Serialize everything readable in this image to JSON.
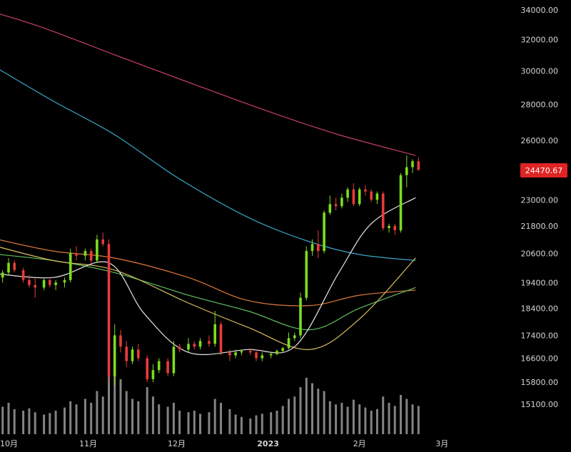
{
  "chart_data": {
    "type": "candlestick",
    "y_axis": {
      "ticks": [
        "34000.00",
        "32000.00",
        "30000.00",
        "28000.00",
        "26000.00",
        "23000.00",
        "21800.00",
        "20600.00",
        "19400.00",
        "18400.00",
        "17400.00",
        "16600.00",
        "15800.00",
        "15100.00"
      ],
      "scale": "log"
    },
    "x_axis": {
      "ticks": [
        {
          "label": "10月",
          "bold": false
        },
        {
          "label": "11月",
          "bold": false
        },
        {
          "label": "12月",
          "bold": false
        },
        {
          "label": "2023",
          "bold": true
        },
        {
          "label": "2月",
          "bold": false
        },
        {
          "label": "3月",
          "bold": false
        }
      ]
    },
    "last_price": "24470.67",
    "colors": {
      "background": "#000000",
      "up": "#7ddc1f",
      "down": "#e83b3b",
      "price_label_bg": "#e02424",
      "volume": "#9a9a9a",
      "ma_short": "#e6e6e6",
      "ma_mid1": "#d8c060",
      "ma_mid2": "#5fbf5f",
      "ma_mid3": "#e07a3a",
      "ma_long1": "#3aa6c8",
      "ma_long2": "#c8406a"
    },
    "moving_averages": [
      {
        "color_key": "ma_long2",
        "points": [
          [
            "2022-09-20",
            34450
          ],
          [
            "2022-10-15",
            32900
          ],
          [
            "2022-11-10",
            31000
          ],
          [
            "2022-12-05",
            29300
          ],
          [
            "2023-01-01",
            27600
          ],
          [
            "2023-01-25",
            26300
          ],
          [
            "2023-02-20",
            25200
          ]
        ]
      },
      {
        "color_key": "ma_long1",
        "points": [
          [
            "2022-09-28",
            30500
          ],
          [
            "2022-10-20",
            28200
          ],
          [
            "2022-11-10",
            26300
          ],
          [
            "2022-12-01",
            24100
          ],
          [
            "2022-12-25",
            22200
          ],
          [
            "2023-01-15",
            21100
          ],
          [
            "2023-02-01",
            20550
          ],
          [
            "2023-02-20",
            20300
          ]
        ]
      },
      {
        "color_key": "ma_mid3",
        "points": [
          [
            "2022-09-28",
            21300
          ],
          [
            "2022-10-20",
            20700
          ],
          [
            "2022-11-10",
            20400
          ],
          [
            "2022-12-05",
            19600
          ],
          [
            "2022-12-25",
            18700
          ],
          [
            "2023-01-15",
            18500
          ],
          [
            "2023-02-01",
            18900
          ],
          [
            "2023-02-20",
            19100
          ]
        ]
      },
      {
        "color_key": "ma_mid2",
        "points": [
          [
            "2022-09-28",
            20600
          ],
          [
            "2022-10-20",
            20300
          ],
          [
            "2022-11-10",
            19800
          ],
          [
            "2022-12-05",
            18900
          ],
          [
            "2022-12-25",
            18300
          ],
          [
            "2023-01-15",
            17600
          ],
          [
            "2023-02-01",
            18400
          ],
          [
            "2023-02-20",
            19200
          ]
        ]
      },
      {
        "color_key": "ma_mid1",
        "points": [
          [
            "2022-09-28",
            21000
          ],
          [
            "2022-10-20",
            20300
          ],
          [
            "2022-11-10",
            19900
          ],
          [
            "2022-12-05",
            18600
          ],
          [
            "2022-12-25",
            17700
          ],
          [
            "2023-01-15",
            16900
          ],
          [
            "2023-02-01",
            18000
          ],
          [
            "2023-02-20",
            20400
          ]
        ]
      },
      {
        "color_key": "ma_short",
        "points": [
          [
            "2022-09-28",
            19800
          ],
          [
            "2022-10-20",
            19600
          ],
          [
            "2022-11-08",
            20200
          ],
          [
            "2022-11-20",
            18200
          ],
          [
            "2022-12-05",
            16800
          ],
          [
            "2022-12-25",
            16900
          ],
          [
            "2023-01-10",
            17000
          ],
          [
            "2023-01-25",
            19800
          ],
          [
            "2023-02-05",
            21900
          ],
          [
            "2023-02-20",
            23100
          ]
        ]
      }
    ],
    "candles": [
      [
        "2022-09-28",
        19500,
        19800,
        19300,
        19700
      ],
      [
        "2022-09-30",
        19700,
        20000,
        19500,
        19600
      ],
      [
        "2022-10-03",
        19600,
        19900,
        19400,
        19800
      ],
      [
        "2022-10-05",
        19800,
        20400,
        19700,
        20200
      ],
      [
        "2022-10-07",
        20200,
        20300,
        19800,
        19900
      ],
      [
        "2022-10-10",
        19900,
        20000,
        19400,
        19500
      ],
      [
        "2022-10-12",
        19500,
        19700,
        19200,
        19300
      ],
      [
        "2022-10-14",
        19300,
        19600,
        18800,
        19200
      ],
      [
        "2022-10-17",
        19200,
        19600,
        19100,
        19500
      ],
      [
        "2022-10-19",
        19500,
        19600,
        19200,
        19300
      ],
      [
        "2022-10-21",
        19300,
        19500,
        19100,
        19400
      ],
      [
        "2022-10-24",
        19400,
        19600,
        19200,
        19500
      ],
      [
        "2022-10-26",
        19500,
        20800,
        19400,
        20600
      ],
      [
        "2022-10-28",
        20600,
        20900,
        20300,
        20500
      ],
      [
        "2022-10-31",
        20500,
        20800,
        20300,
        20700
      ],
      [
        "2022-11-02",
        20700,
        20800,
        20200,
        20300
      ],
      [
        "2022-11-04",
        20300,
        21400,
        20200,
        21200
      ],
      [
        "2022-11-06",
        21200,
        21500,
        20900,
        21000
      ],
      [
        "2022-11-08",
        21000,
        21200,
        15800,
        16000
      ],
      [
        "2022-11-10",
        16000,
        17800,
        15700,
        17400
      ],
      [
        "2022-11-12",
        17400,
        17600,
        16800,
        17000
      ],
      [
        "2022-11-14",
        17000,
        17200,
        16300,
        16500
      ],
      [
        "2022-11-16",
        16500,
        17000,
        16400,
        16900
      ],
      [
        "2022-11-18",
        16900,
        17100,
        16500,
        16600
      ],
      [
        "2022-11-21",
        16600,
        16700,
        15800,
        15900
      ],
      [
        "2022-11-23",
        15900,
        16400,
        15800,
        16200
      ],
      [
        "2022-11-25",
        16200,
        16600,
        16100,
        16500
      ],
      [
        "2022-11-28",
        16500,
        16600,
        16000,
        16100
      ],
      [
        "2022-11-30",
        16100,
        17200,
        16000,
        17000
      ],
      [
        "2022-12-02",
        17000,
        17100,
        16800,
        16900
      ],
      [
        "2022-12-05",
        16900,
        17300,
        16800,
        17100
      ],
      [
        "2022-12-07",
        17100,
        17200,
        16900,
        17000
      ],
      [
        "2022-12-09",
        17000,
        17300,
        16900,
        17200
      ],
      [
        "2022-12-12",
        17200,
        17400,
        17000,
        17100
      ],
      [
        "2022-12-14",
        17100,
        18300,
        17000,
        17800
      ],
      [
        "2022-12-16",
        17800,
        17900,
        16700,
        16800
      ],
      [
        "2022-12-19",
        16800,
        16900,
        16500,
        16700
      ],
      [
        "2022-12-21",
        16700,
        16900,
        16600,
        16800
      ],
      [
        "2022-12-23",
        16800,
        16900,
        16700,
        16850
      ],
      [
        "2022-12-26",
        16850,
        16950,
        16700,
        16800
      ],
      [
        "2022-12-28",
        16800,
        16900,
        16500,
        16600
      ],
      [
        "2022-12-30",
        16600,
        16800,
        16500,
        16700
      ],
      [
        "2023-01-02",
        16700,
        16800,
        16600,
        16750
      ],
      [
        "2023-01-04",
        16750,
        16900,
        16700,
        16850
      ],
      [
        "2023-01-06",
        16850,
        17000,
        16800,
        16950
      ],
      [
        "2023-01-08",
        16950,
        17500,
        16900,
        17300
      ],
      [
        "2023-01-10",
        17300,
        17500,
        17200,
        17400
      ],
      [
        "2023-01-12",
        17400,
        19000,
        17300,
        18800
      ],
      [
        "2023-01-14",
        18800,
        20900,
        18700,
        20700
      ],
      [
        "2023-01-16",
        20700,
        21200,
        20500,
        21000
      ],
      [
        "2023-01-18",
        21000,
        21600,
        20400,
        20700
      ],
      [
        "2023-01-20",
        20700,
        22500,
        20600,
        22400
      ],
      [
        "2023-01-22",
        22400,
        23200,
        22300,
        22800
      ],
      [
        "2023-01-24",
        22800,
        23100,
        22500,
        22700
      ],
      [
        "2023-01-26",
        22700,
        23300,
        22600,
        23100
      ],
      [
        "2023-01-28",
        23100,
        23600,
        22900,
        23500
      ],
      [
        "2023-01-30",
        23500,
        23800,
        22700,
        22800
      ],
      [
        "2023-02-01",
        22800,
        23600,
        22700,
        23500
      ],
      [
        "2023-02-03",
        23500,
        23700,
        23200,
        23400
      ],
      [
        "2023-02-05",
        23400,
        23500,
        22900,
        23000
      ],
      [
        "2023-02-07",
        23000,
        23400,
        22800,
        23300
      ],
      [
        "2023-02-09",
        23300,
        23400,
        21600,
        21700
      ],
      [
        "2023-02-11",
        21700,
        21900,
        21500,
        21800
      ],
      [
        "2023-02-13",
        21800,
        21900,
        21400,
        21600
      ],
      [
        "2023-02-15",
        21600,
        24300,
        21500,
        24200
      ],
      [
        "2023-02-17",
        24200,
        25200,
        23600,
        24600
      ],
      [
        "2023-02-19",
        24600,
        25000,
        24300,
        24900
      ],
      [
        "2023-02-21",
        24900,
        25100,
        24400,
        24470
      ]
    ],
    "volumes": [
      0.3,
      0.28,
      0.35,
      0.4,
      0.32,
      0.3,
      0.33,
      0.28,
      0.25,
      0.27,
      0.3,
      0.34,
      0.42,
      0.38,
      0.45,
      0.4,
      0.55,
      0.48,
      1.0,
      0.85,
      0.7,
      0.55,
      0.45,
      0.42,
      0.6,
      0.48,
      0.38,
      0.35,
      0.4,
      0.3,
      0.28,
      0.3,
      0.26,
      0.28,
      0.45,
      0.4,
      0.32,
      0.25,
      0.22,
      0.2,
      0.24,
      0.26,
      0.28,
      0.3,
      0.36,
      0.45,
      0.48,
      0.6,
      0.72,
      0.65,
      0.58,
      0.55,
      0.42,
      0.38,
      0.4,
      0.35,
      0.44,
      0.38,
      0.34,
      0.3,
      0.32,
      0.48,
      0.4,
      0.36,
      0.5,
      0.45,
      0.38,
      0.36
    ]
  }
}
